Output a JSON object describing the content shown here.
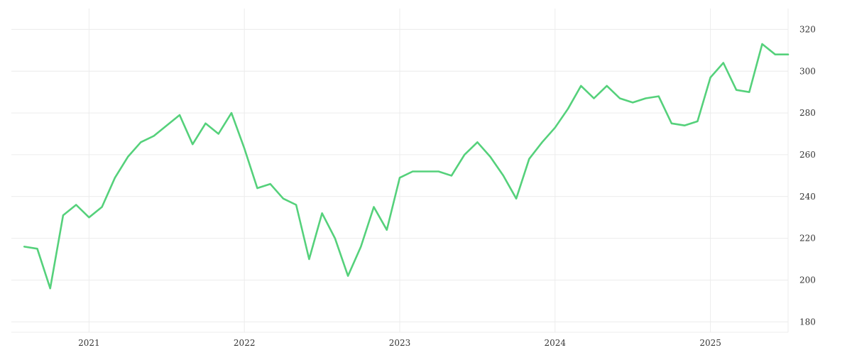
{
  "chart_data": {
    "type": "line",
    "title": "",
    "xlabel": "",
    "ylabel": "",
    "x_tick_labels": [
      "2021",
      "2022",
      "2023",
      "2024",
      "2025"
    ],
    "x_tick_years": [
      2021,
      2022,
      2023,
      2024,
      2025
    ],
    "y_tick_labels": [
      "180",
      "200",
      "220",
      "240",
      "260",
      "280",
      "300",
      "320"
    ],
    "y_tick_values": [
      180,
      200,
      220,
      240,
      260,
      280,
      300,
      320
    ],
    "xlim": [
      "2020-07",
      "2025-07"
    ],
    "ylim": [
      175,
      330
    ],
    "grid": true,
    "y_axis_side": "right",
    "color": "#55d17b",
    "x": [
      "2020-08",
      "2020-09",
      "2020-10",
      "2020-11",
      "2020-12",
      "2021-01",
      "2021-02",
      "2021-03",
      "2021-04",
      "2021-05",
      "2021-06",
      "2021-07",
      "2021-08",
      "2021-09",
      "2021-10",
      "2021-11",
      "2021-12",
      "2022-01",
      "2022-02",
      "2022-03",
      "2022-04",
      "2022-05",
      "2022-06",
      "2022-07",
      "2022-08",
      "2022-09",
      "2022-10",
      "2022-11",
      "2022-12",
      "2023-01",
      "2023-02",
      "2023-03",
      "2023-04",
      "2023-05",
      "2023-06",
      "2023-07",
      "2023-08",
      "2023-09",
      "2023-10",
      "2023-11",
      "2023-12",
      "2024-01",
      "2024-02",
      "2024-03",
      "2024-04",
      "2024-05",
      "2024-06",
      "2024-07",
      "2024-08",
      "2024-09",
      "2024-10",
      "2024-11",
      "2024-12",
      "2025-01",
      "2025-02",
      "2025-03",
      "2025-04",
      "2025-05",
      "2025-06",
      "2025-07"
    ],
    "values": [
      216,
      215,
      196,
      231,
      236,
      230,
      235,
      249,
      259,
      266,
      269,
      274,
      279,
      265,
      275,
      270,
      280,
      263,
      244,
      246,
      239,
      236,
      210,
      232,
      220,
      202,
      216,
      235,
      224,
      249,
      252,
      252,
      252,
      250,
      260,
      266,
      259,
      250,
      239,
      258,
      266,
      273,
      282,
      293,
      287,
      293,
      287,
      285,
      287,
      288,
      275,
      274,
      276,
      297,
      304,
      291,
      290,
      313,
      308,
      308
    ]
  }
}
